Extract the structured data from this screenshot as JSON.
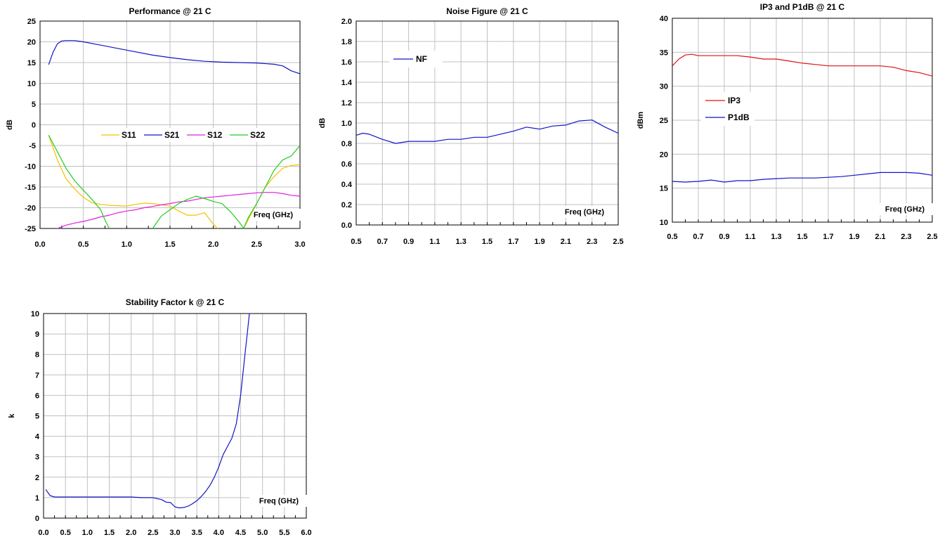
{
  "chart_data": [
    {
      "id": "perf",
      "type": "line",
      "title": "Performance @ 21 C",
      "xlabel": "Freq (GHz)",
      "ylabel": "dB",
      "xlim": [
        0,
        3.0
      ],
      "ylim": [
        -25,
        25
      ],
      "xticks": [
        "0.0",
        "0.5",
        "1.0",
        "1.5",
        "2.0",
        "2.5",
        "3.0"
      ],
      "xtick_values": [
        0,
        0.5,
        1.0,
        1.5,
        2.0,
        2.5,
        3.0
      ],
      "xminor": 0.25,
      "yticks": [
        "-25",
        "-20",
        "-15",
        "-10",
        "-5",
        "0",
        "5",
        "10",
        "15",
        "20",
        "25"
      ],
      "ytick_values": [
        -25,
        -20,
        -15,
        -10,
        -5,
        0,
        5,
        10,
        15,
        20,
        25
      ],
      "grid": true,
      "legend": "middle",
      "series": [
        {
          "name": "S11",
          "color": "#f5c000",
          "x": [
            0.1,
            0.15,
            0.2,
            0.3,
            0.4,
            0.5,
            0.6,
            0.7,
            0.8,
            0.9,
            1.0,
            1.1,
            1.2,
            1.3,
            1.4,
            1.5,
            1.6,
            1.7,
            1.8,
            1.9,
            2.0,
            2.05
          ],
          "y": [
            -2.5,
            -5.5,
            -8.5,
            -13,
            -15.5,
            -17.5,
            -18.8,
            -19.2,
            -19.4,
            -19.5,
            -19.6,
            -19.2,
            -18.9,
            -19.0,
            -19.3,
            -19.6,
            -20.8,
            -21.8,
            -21.8,
            -21.2,
            -24.0,
            -25.0
          ]
        },
        {
          "name": "S11",
          "color": "#f5c000",
          "x": [
            2.35,
            2.4,
            2.5,
            2.6,
            2.7,
            2.8,
            2.9,
            3.0
          ],
          "y": [
            -25.0,
            -23.0,
            -19.0,
            -15.0,
            -12.5,
            -10.5,
            -9.8,
            -9.6
          ]
        },
        {
          "name": "S21",
          "color": "#1414c8",
          "x": [
            0.1,
            0.15,
            0.2,
            0.25,
            0.3,
            0.4,
            0.5,
            0.7,
            1.0,
            1.3,
            1.5,
            1.7,
            1.9,
            2.1,
            2.3,
            2.5,
            2.7,
            2.8,
            2.9,
            3.0
          ],
          "y": [
            14.5,
            17.5,
            19.5,
            20.2,
            20.3,
            20.3,
            20.0,
            19.2,
            18.0,
            16.8,
            16.2,
            15.7,
            15.3,
            15.1,
            15.0,
            14.9,
            14.6,
            14.2,
            13.0,
            12.3
          ]
        },
        {
          "name": "S12",
          "color": "#e020e0",
          "x": [
            0.2,
            0.3,
            0.4,
            0.5,
            0.6,
            0.7,
            0.8,
            0.9,
            1.0,
            1.1,
            1.2,
            1.3,
            1.4,
            1.5,
            1.6,
            1.7,
            1.8,
            1.9,
            2.0,
            2.1,
            2.2,
            2.3,
            2.4,
            2.5,
            2.6,
            2.7,
            2.8,
            2.9,
            3.0
          ],
          "y": [
            -25.0,
            -24.2,
            -23.7,
            -23.3,
            -22.8,
            -22.2,
            -21.8,
            -21.2,
            -20.8,
            -20.5,
            -20.0,
            -19.7,
            -19.3,
            -19.0,
            -18.6,
            -18.4,
            -18.0,
            -17.6,
            -17.4,
            -17.2,
            -17.0,
            -16.8,
            -16.6,
            -16.4,
            -16.3,
            -16.3,
            -16.6,
            -17.0,
            -17.2
          ]
        },
        {
          "name": "S22",
          "color": "#22cc22",
          "x": [
            0.1,
            0.15,
            0.2,
            0.3,
            0.4,
            0.5,
            0.6,
            0.7,
            0.75,
            0.8
          ],
          "y": [
            -2.5,
            -4.5,
            -6.5,
            -10.5,
            -13.5,
            -15.8,
            -18.0,
            -20.5,
            -23.0,
            -25.0
          ]
        },
        {
          "name": "S22",
          "color": "#22cc22",
          "x": [
            1.3,
            1.35,
            1.4,
            1.5,
            1.6,
            1.7,
            1.8,
            1.9,
            2.0,
            2.1,
            2.2,
            2.3,
            2.35,
            2.4,
            2.5,
            2.6,
            2.7,
            2.8,
            2.9,
            3.0
          ],
          "y": [
            -25.0,
            -23.5,
            -22.0,
            -20.5,
            -19.0,
            -18.0,
            -17.2,
            -17.8,
            -18.5,
            -19.0,
            -21.0,
            -23.5,
            -25.0,
            -22.5,
            -19.0,
            -15.0,
            -11.0,
            -8.5,
            -7.5,
            -5.0
          ]
        }
      ],
      "legend_items": [
        {
          "name": "S11",
          "color": "#f5c000"
        },
        {
          "name": "S21",
          "color": "#1414c8"
        },
        {
          "name": "S12",
          "color": "#e020e0"
        },
        {
          "name": "S22",
          "color": "#22cc22"
        }
      ]
    },
    {
      "id": "nf",
      "type": "line",
      "title": "Noise Figure @ 21 C",
      "xlabel": "Freq (GHz)",
      "ylabel": "dB",
      "xlim": [
        0.5,
        2.5
      ],
      "ylim": [
        0,
        2.0
      ],
      "xticks": [
        "0.5",
        "0.7",
        "0.9",
        "1.1",
        "1.3",
        "1.5",
        "1.7",
        "1.9",
        "2.1",
        "2.3",
        "2.5"
      ],
      "xtick_values": [
        0.5,
        0.7,
        0.9,
        1.1,
        1.3,
        1.5,
        1.7,
        1.9,
        2.1,
        2.3,
        2.5
      ],
      "xminor": 0.1,
      "yticks": [
        "0.0",
        "0.2",
        "0.4",
        "0.6",
        "0.8",
        "1.0",
        "1.2",
        "1.4",
        "1.6",
        "1.8",
        "2.0"
      ],
      "ytick_values": [
        0,
        0.2,
        0.4,
        0.6,
        0.8,
        1.0,
        1.2,
        1.4,
        1.6,
        1.8,
        2.0
      ],
      "grid": true,
      "legend": "top-left",
      "series": [
        {
          "name": "NF",
          "color": "#1414c8",
          "x": [
            0.5,
            0.55,
            0.6,
            0.7,
            0.8,
            0.9,
            1.0,
            1.1,
            1.2,
            1.3,
            1.4,
            1.5,
            1.6,
            1.7,
            1.8,
            1.9,
            2.0,
            2.1,
            2.2,
            2.3,
            2.4,
            2.5
          ],
          "y": [
            0.88,
            0.9,
            0.89,
            0.84,
            0.8,
            0.82,
            0.82,
            0.82,
            0.84,
            0.84,
            0.86,
            0.86,
            0.89,
            0.92,
            0.96,
            0.94,
            0.97,
            0.98,
            1.02,
            1.03,
            0.96,
            0.9
          ]
        }
      ],
      "legend_items": [
        {
          "name": "NF",
          "color": "#1414c8"
        }
      ]
    },
    {
      "id": "ip3",
      "type": "line",
      "title": "IP3 and P1dB @ 21 C",
      "xlabel": "Freq (GHz)",
      "ylabel": "dBm",
      "xlim": [
        0.5,
        2.5
      ],
      "ylim": [
        10,
        40
      ],
      "xticks": [
        "0.5",
        "0.7",
        "0.9",
        "1.1",
        "1.3",
        "1.5",
        "1.7",
        "1.9",
        "2.1",
        "2.3",
        "2.5"
      ],
      "xtick_values": [
        0.5,
        0.7,
        0.9,
        1.1,
        1.3,
        1.5,
        1.7,
        1.9,
        2.1,
        2.3,
        2.5
      ],
      "xminor": 0.1,
      "yticks": [
        "10",
        "15",
        "20",
        "25",
        "30",
        "35",
        "40"
      ],
      "ytick_values": [
        10,
        15,
        20,
        25,
        30,
        35,
        40
      ],
      "grid": true,
      "legend": "middle-left",
      "series": [
        {
          "name": "IP3",
          "color": "#e01010",
          "x": [
            0.5,
            0.55,
            0.6,
            0.65,
            0.7,
            0.8,
            0.9,
            1.0,
            1.1,
            1.2,
            1.3,
            1.4,
            1.5,
            1.6,
            1.7,
            1.8,
            1.9,
            2.0,
            2.1,
            2.2,
            2.3,
            2.4,
            2.5
          ],
          "y": [
            33.0,
            34.0,
            34.6,
            34.7,
            34.5,
            34.5,
            34.5,
            34.5,
            34.3,
            34.0,
            34.0,
            33.7,
            33.4,
            33.2,
            33.0,
            33.0,
            33.0,
            33.0,
            33.0,
            32.8,
            32.3,
            32.0,
            31.5
          ]
        },
        {
          "name": "P1dB",
          "color": "#1414c8",
          "x": [
            0.5,
            0.6,
            0.7,
            0.8,
            0.9,
            1.0,
            1.1,
            1.2,
            1.3,
            1.4,
            1.5,
            1.6,
            1.7,
            1.8,
            1.9,
            2.0,
            2.1,
            2.2,
            2.3,
            2.4,
            2.5
          ],
          "y": [
            16.0,
            15.9,
            16.0,
            16.2,
            15.9,
            16.1,
            16.1,
            16.3,
            16.4,
            16.5,
            16.5,
            16.5,
            16.6,
            16.7,
            16.9,
            17.1,
            17.3,
            17.3,
            17.3,
            17.2,
            16.9
          ]
        }
      ],
      "legend_items": [
        {
          "name": "IP3",
          "color": "#e01010"
        },
        {
          "name": "P1dB",
          "color": "#1414c8"
        }
      ]
    },
    {
      "id": "k",
      "type": "line",
      "title": "Stability Factor k @ 21 C",
      "xlabel": "Freq (GHz)",
      "ylabel": "k",
      "xlim": [
        0,
        6.0
      ],
      "ylim": [
        0,
        10
      ],
      "xticks": [
        "0.0",
        "0.5",
        "1.0",
        "1.5",
        "2.0",
        "2.5",
        "3.0",
        "3.5",
        "4.0",
        "4.5",
        "5.0",
        "5.5",
        "6.0"
      ],
      "xtick_values": [
        0,
        0.5,
        1.0,
        1.5,
        2.0,
        2.5,
        3.0,
        3.5,
        4.0,
        4.5,
        5.0,
        5.5,
        6.0
      ],
      "xminor": 0.25,
      "yticks": [
        "0",
        "1",
        "2",
        "3",
        "4",
        "5",
        "6",
        "7",
        "8",
        "9",
        "10"
      ],
      "ytick_values": [
        0,
        1,
        2,
        3,
        4,
        5,
        6,
        7,
        8,
        9,
        10
      ],
      "grid": true,
      "legend": "none",
      "series": [
        {
          "name": "k",
          "color": "#1414c8",
          "x": [
            0.05,
            0.15,
            0.25,
            0.5,
            1.0,
            1.5,
            2.0,
            2.25,
            2.5,
            2.7,
            2.8,
            2.9,
            3.0,
            3.1,
            3.2,
            3.3,
            3.4,
            3.5,
            3.6,
            3.7,
            3.8,
            3.9,
            4.0,
            4.1,
            4.2,
            4.3,
            4.4,
            4.5,
            4.55,
            4.6,
            4.65,
            4.7
          ],
          "y": [
            1.4,
            1.1,
            1.03,
            1.03,
            1.03,
            1.03,
            1.03,
            1.0,
            1.0,
            0.9,
            0.78,
            0.76,
            0.55,
            0.5,
            0.52,
            0.58,
            0.7,
            0.85,
            1.05,
            1.3,
            1.6,
            2.0,
            2.5,
            3.1,
            3.5,
            3.9,
            4.6,
            6.0,
            7.0,
            8.0,
            9.0,
            10.0
          ]
        }
      ],
      "legend_items": []
    }
  ]
}
